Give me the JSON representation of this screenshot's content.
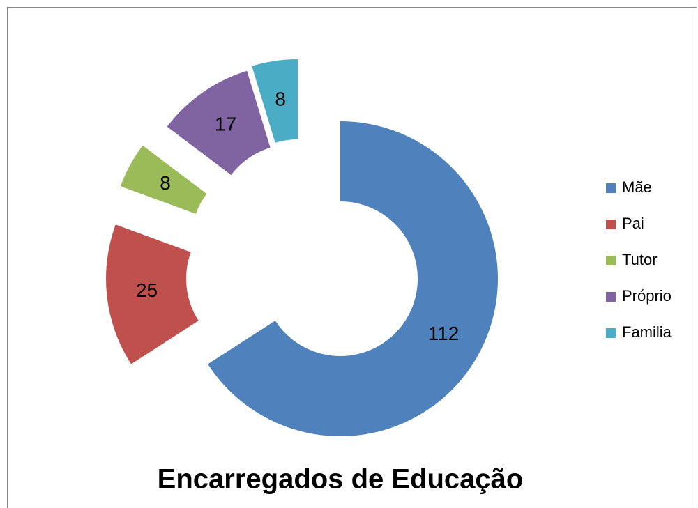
{
  "chart_data": {
    "type": "donut",
    "title": "Encarregados de Educação",
    "categories": [
      "Mãe",
      "Pai",
      "Tutor",
      "Próprio",
      "Familia"
    ],
    "values": [
      112,
      25,
      8,
      17,
      8
    ],
    "colors": [
      "#4f81bd",
      "#c0504d",
      "#9bbb59",
      "#8064a2",
      "#4bacc6"
    ],
    "legend": "right"
  }
}
